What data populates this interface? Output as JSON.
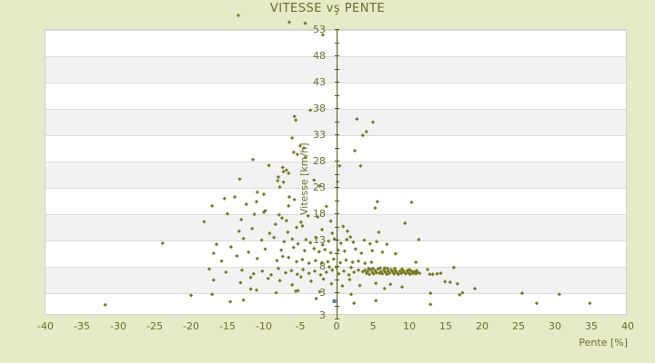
{
  "title": "VITESSE vş PENTE",
  "x_axis": {
    "label": "Pente [%]",
    "ticks": [
      -40,
      -35,
      -30,
      -25,
      -20,
      -15,
      -10,
      -5,
      0,
      5,
      10,
      15,
      20,
      25,
      30,
      35,
      40
    ]
  },
  "y_axis": {
    "label": "Vitesse [km/h]",
    "ticks": [
      53,
      48,
      43,
      38,
      33,
      28,
      23,
      18,
      13,
      8,
      3
    ],
    "bottom_label": "3"
  },
  "colors": {
    "background": "#e6eac6",
    "band_white": "#ffffff",
    "band_gray": "#f2f2f2",
    "gridline": "#dcdcdc",
    "axis_line": "#4c5512",
    "text": "#6b6e2d",
    "marker": "#75791b",
    "highlight_marker": "#4a7e96"
  },
  "chart_data": {
    "type": "scatter",
    "title": "VITESSE vş PENTE",
    "xlabel": "Pente [%]",
    "ylabel": "Vitesse [km/h]",
    "xlim": [
      -40,
      40
    ],
    "ylim_tick_range": [
      3,
      53
    ],
    "grid": "horizontal-bands",
    "legend": "none",
    "series": [
      {
        "name": "vitesse-vs-pente",
        "marker": "diamond",
        "color": "#75791b",
        "points": [
          [
            -13.5,
            55.6
          ],
          [
            -6.5,
            54.3
          ],
          [
            -4.3,
            54.1
          ],
          [
            -1.9,
            51.9
          ],
          [
            -3.6,
            37.6
          ],
          [
            -5.8,
            36.4
          ],
          [
            -5.6,
            35.7
          ],
          [
            2.8,
            35.9
          ],
          [
            5.0,
            35.3
          ],
          [
            4.1,
            33.5
          ],
          [
            3.6,
            32.8
          ],
          [
            -6.1,
            32.3
          ],
          [
            -5.0,
            30.8
          ],
          [
            -4.5,
            30.4
          ],
          [
            2.5,
            29.9
          ],
          [
            -5.9,
            29.6
          ],
          [
            -5.4,
            29.2
          ],
          [
            -11.5,
            28.2
          ],
          [
            -4.3,
            28.6
          ],
          [
            -9.3,
            27.1
          ],
          [
            0.4,
            27.0
          ],
          [
            3.3,
            27.0
          ],
          [
            -7.4,
            26.7
          ],
          [
            -6.9,
            26.2
          ],
          [
            -7.3,
            25.9
          ],
          [
            -6.6,
            25.6
          ],
          [
            -8.0,
            24.9
          ],
          [
            -13.3,
            24.5
          ],
          [
            0.1,
            24.0
          ],
          [
            -3.1,
            24.3
          ],
          [
            -8.1,
            24.2
          ],
          [
            -7.3,
            23.9
          ],
          [
            -7.8,
            23.0
          ],
          [
            -2.3,
            23.2
          ],
          [
            -15.4,
            20.8
          ],
          [
            -14.0,
            21.1
          ],
          [
            -10.9,
            22.0
          ],
          [
            -10.0,
            21.6
          ],
          [
            -11.0,
            20.2
          ],
          [
            -17.1,
            19.4
          ],
          [
            -6.5,
            21.1
          ],
          [
            -5.8,
            20.6
          ],
          [
            5.6,
            20.2
          ],
          [
            10.3,
            20.1
          ],
          [
            -6.6,
            19.4
          ],
          [
            5.3,
            19.0
          ],
          [
            -1.4,
            19.3
          ],
          [
            -12.4,
            19.7
          ],
          [
            -9.8,
            18.5
          ],
          [
            -10.0,
            18.2
          ],
          [
            -11.3,
            17.8
          ],
          [
            -7.9,
            17.7
          ],
          [
            -7.5,
            17.1
          ],
          [
            -6.9,
            16.6
          ],
          [
            -4.9,
            16.3
          ],
          [
            9.4,
            16.1
          ],
          [
            -2.6,
            17.3
          ],
          [
            -15.0,
            17.9
          ],
          [
            -18.2,
            16.4
          ],
          [
            -3.9,
            17.5
          ],
          [
            -13.1,
            16.8
          ],
          [
            -0.8,
            16.5
          ],
          [
            0.9,
            15.5
          ],
          [
            1.5,
            14.6
          ],
          [
            5.8,
            14.4
          ],
          [
            -8.4,
            15.9
          ],
          [
            -5.5,
            15.3
          ],
          [
            -11.6,
            15.1
          ],
          [
            -2.0,
            14.9
          ],
          [
            -9.2,
            14.2
          ],
          [
            -6.7,
            14.4
          ],
          [
            -0.6,
            14.2
          ],
          [
            -4.7,
            15.6
          ],
          [
            -13.4,
            14.6
          ],
          [
            -16.5,
            12.1
          ],
          [
            -23.9,
            12.3
          ],
          [
            -12.8,
            13.2
          ],
          [
            -10.3,
            12.9
          ],
          [
            -8.6,
            13.4
          ],
          [
            -7.2,
            12.6
          ],
          [
            -6.1,
            13.1
          ],
          [
            -5.3,
            12.2
          ],
          [
            -4.2,
            13.0
          ],
          [
            -3.6,
            12.4
          ],
          [
            -2.8,
            13.3
          ],
          [
            -1.9,
            12.0
          ],
          [
            -1.1,
            12.7
          ],
          [
            -0.3,
            13.1
          ],
          [
            0.6,
            12.3
          ],
          [
            1.4,
            13.0
          ],
          [
            2.3,
            12.5
          ],
          [
            3.8,
            12.9
          ],
          [
            4.6,
            12.2
          ],
          [
            5.5,
            12.6
          ],
          [
            6.9,
            12.1
          ],
          [
            1.9,
            13.5
          ],
          [
            11.3,
            13.0
          ],
          [
            -14.5,
            11.6
          ],
          [
            -9.8,
            11.2
          ],
          [
            -7.6,
            11.0
          ],
          [
            -5.9,
            11.5
          ],
          [
            -4.4,
            10.9
          ],
          [
            -3.1,
            11.3
          ],
          [
            -2.4,
            10.7
          ],
          [
            -1.6,
            11.1
          ],
          [
            -0.8,
            10.5
          ],
          [
            0.2,
            11.0
          ],
          [
            1.1,
            10.8
          ],
          [
            2.6,
            11.2
          ],
          [
            3.4,
            10.4
          ],
          [
            4.9,
            10.9
          ],
          [
            6.3,
            10.6
          ],
          [
            8.1,
            10.3
          ],
          [
            -12.1,
            10.6
          ],
          [
            -16.9,
            10.4
          ],
          [
            -10.9,
            9.4
          ],
          [
            -8.2,
            9.0
          ],
          [
            -6.6,
            9.6
          ],
          [
            -5.5,
            8.8
          ],
          [
            -4.7,
            9.2
          ],
          [
            -3.8,
            8.5
          ],
          [
            -2.9,
            9.0
          ],
          [
            -2.0,
            8.6
          ],
          [
            -1.2,
            8.8
          ],
          [
            -0.4,
            9.3
          ],
          [
            0.5,
            8.6
          ],
          [
            1.3,
            9.1
          ],
          [
            2.2,
            8.7
          ],
          [
            3.0,
            8.9
          ],
          [
            3.9,
            8.5
          ],
          [
            4.8,
            8.7
          ],
          [
            10.9,
            8.7
          ],
          [
            -13.7,
            9.9
          ],
          [
            -15.8,
            8.9
          ],
          [
            -7.4,
            9.8
          ],
          [
            3.6,
            6.9
          ],
          [
            3.9,
            7.2
          ],
          [
            4.1,
            6.6
          ],
          [
            4.3,
            7.0
          ],
          [
            4.5,
            6.4
          ],
          [
            4.7,
            7.3
          ],
          [
            4.9,
            6.8
          ],
          [
            5.1,
            6.5
          ],
          [
            5.3,
            7.1
          ],
          [
            5.5,
            6.7
          ],
          [
            5.7,
            7.4
          ],
          [
            5.9,
            6.6
          ],
          [
            6.1,
            6.9
          ],
          [
            6.3,
            6.5
          ],
          [
            6.5,
            7.2
          ],
          [
            6.7,
            6.8
          ],
          [
            6.9,
            6.4
          ],
          [
            7.1,
            7.0
          ],
          [
            7.3,
            6.6
          ],
          [
            7.5,
            7.3
          ],
          [
            7.7,
            6.9
          ],
          [
            7.9,
            6.5
          ],
          [
            8.1,
            7.1
          ],
          [
            8.3,
            6.7
          ],
          [
            8.5,
            6.4
          ],
          [
            8.7,
            7.0
          ],
          [
            8.9,
            6.6
          ],
          [
            9.1,
            7.2
          ],
          [
            9.3,
            6.8
          ],
          [
            9.5,
            6.5
          ],
          [
            9.7,
            7.1
          ],
          [
            9.9,
            6.7
          ],
          [
            10.1,
            6.4
          ],
          [
            10.3,
            7.0
          ],
          [
            10.5,
            6.6
          ],
          [
            10.7,
            6.9
          ],
          [
            10.9,
            6.5
          ],
          [
            11.1,
            6.8
          ],
          [
            11.4,
            6.6
          ],
          [
            6.0,
            7.6
          ],
          [
            7.0,
            7.5
          ],
          [
            8.0,
            7.5
          ],
          [
            9.0,
            7.4
          ],
          [
            5.0,
            7.5
          ],
          [
            4.4,
            7.5
          ],
          [
            10.0,
            7.3
          ],
          [
            11.0,
            7.1
          ],
          [
            6.6,
            7.6
          ],
          [
            -17.5,
            7.4
          ],
          [
            -15.2,
            6.8
          ],
          [
            -13.0,
            7.2
          ],
          [
            -11.4,
            6.5
          ],
          [
            -10.2,
            7.0
          ],
          [
            -9.0,
            6.3
          ],
          [
            -8.0,
            7.5
          ],
          [
            -7.0,
            6.7
          ],
          [
            -6.2,
            7.1
          ],
          [
            -5.4,
            6.4
          ],
          [
            -4.6,
            7.3
          ],
          [
            -3.8,
            6.6
          ],
          [
            -3.0,
            7.0
          ],
          [
            -2.2,
            6.3
          ],
          [
            -1.4,
            6.8
          ],
          [
            -0.6,
            7.2
          ],
          [
            0.3,
            6.5
          ],
          [
            1.0,
            7.0
          ],
          [
            1.7,
            6.3
          ],
          [
            2.4,
            6.8
          ],
          [
            3.0,
            7.2
          ],
          [
            0.0,
            7.7
          ],
          [
            -1.0,
            7.8
          ],
          [
            2.0,
            7.7
          ],
          [
            12.5,
            7.3
          ],
          [
            12.8,
            6.4
          ],
          [
            13.2,
            6.4
          ],
          [
            13.8,
            6.5
          ],
          [
            14.3,
            6.6
          ],
          [
            16.1,
            7.7
          ],
          [
            -16.9,
            5.3
          ],
          [
            -13.2,
            4.8
          ],
          [
            -9.4,
            5.6
          ],
          [
            -6.1,
            4.4
          ],
          [
            -3.5,
            5.1
          ],
          [
            -0.7,
            4.6
          ],
          [
            1.8,
            5.4
          ],
          [
            3.2,
            4.3
          ],
          [
            7.4,
            4.5
          ],
          [
            9.0,
            4.0
          ],
          [
            15.6,
            4.9
          ],
          [
            16.6,
            4.6
          ],
          [
            -11.8,
            5.8
          ],
          [
            -7.8,
            5.2
          ],
          [
            -4.9,
            5.9
          ],
          [
            -1.8,
            5.5
          ],
          [
            0.8,
            4.2
          ],
          [
            5.4,
            4.7
          ],
          [
            14.9,
            5.0
          ],
          [
            -5.3,
            3.3
          ],
          [
            -11.8,
            3.6
          ],
          [
            -2.3,
            3.1
          ],
          [
            -17.1,
            2.6
          ],
          [
            -11.0,
            3.4
          ],
          [
            -5.6,
            3.2
          ],
          [
            12.9,
            2.8
          ],
          [
            17.3,
            2.9
          ],
          [
            25.5,
            2.8
          ],
          [
            30.6,
            2.6
          ],
          [
            -8.3,
            2.9
          ],
          [
            6.6,
            3.7
          ],
          [
            19.0,
            3.7
          ],
          [
            -20.0,
            2.4
          ],
          [
            -31.8,
            0.6
          ],
          [
            -14.6,
            1.2
          ],
          [
            -12.8,
            1.5
          ],
          [
            2.0,
            2.6
          ],
          [
            2.4,
            0.9
          ],
          [
            5.4,
            1.4
          ],
          [
            12.9,
            0.7
          ],
          [
            27.5,
            0.9
          ],
          [
            34.8,
            0.9
          ],
          [
            16.9,
            2.5
          ],
          [
            -2.8,
            1.8
          ]
        ]
      },
      {
        "name": "highlight-point",
        "marker": "square",
        "color": "#4a7e96",
        "points": [
          [
            -0.3,
            1.3
          ]
        ]
      }
    ]
  }
}
